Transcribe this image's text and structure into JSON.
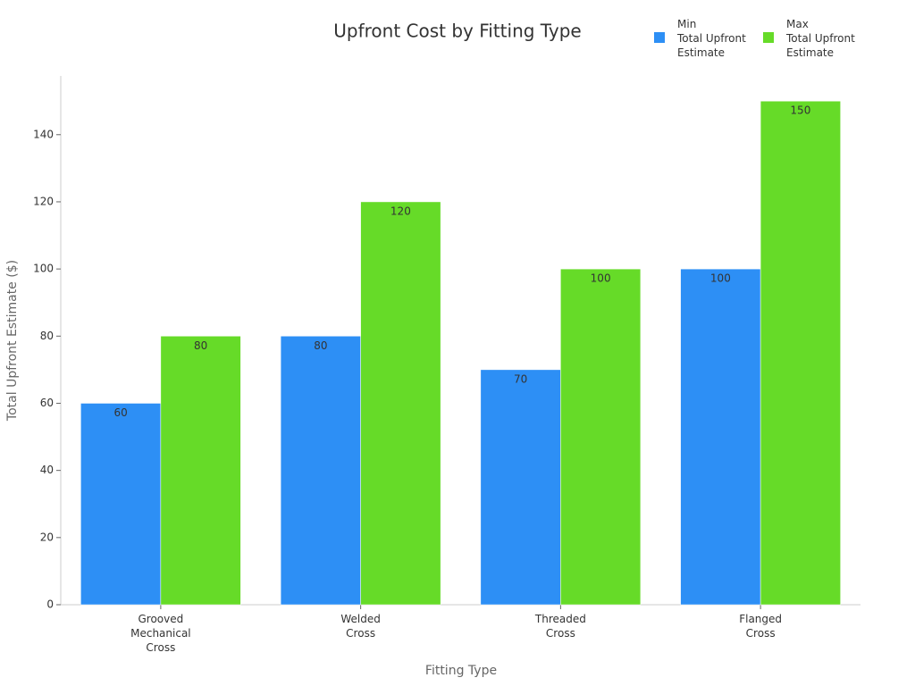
{
  "chart_data": {
    "type": "bar",
    "title": "Upfront Cost by Fitting Type",
    "x_label": "Fitting Type",
    "y_label": "Total Upfront Estimate ($)",
    "categories": [
      "Grooved\nMechanical\nCross",
      "Welded\nCross",
      "Threaded\nCross",
      "Flanged\nCross"
    ],
    "series": [
      {
        "name": "Min\nTotal Upfront\nEstimate",
        "color": "#2d8ff5",
        "values": [
          60,
          80,
          70,
          100
        ]
      },
      {
        "name": "Max\nTotal Upfront\nEstimate",
        "color": "#66db28",
        "values": [
          80,
          120,
          100,
          150
        ]
      }
    ],
    "ylim": [
      0,
      157.5
    ],
    "yticks": [
      0,
      20,
      40,
      60,
      80,
      100,
      120,
      140
    ],
    "grid": false,
    "legend": "top-right"
  }
}
